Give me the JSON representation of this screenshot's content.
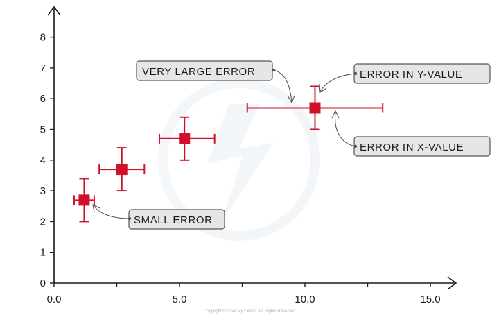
{
  "chart_data": {
    "type": "scatter",
    "title": "",
    "xlabel": "",
    "ylabel": "",
    "xlim": [
      0,
      16
    ],
    "ylim": [
      0,
      8.5
    ],
    "x_ticks": [
      "0.0",
      "5.0",
      "10.0",
      "15.0"
    ],
    "x_tick_values": [
      0,
      5,
      10,
      15
    ],
    "x_minor_ticks": [
      2.5,
      7.5,
      12.5
    ],
    "y_ticks": [
      "0",
      "1",
      "2",
      "3",
      "4",
      "5",
      "6",
      "7",
      "8"
    ],
    "y_tick_values": [
      0,
      1,
      2,
      3,
      4,
      5,
      6,
      7,
      8
    ],
    "grid": false,
    "marker_color": "#d0112b",
    "points": [
      {
        "x": 1.2,
        "y": 2.7,
        "x_err_low": 0.4,
        "x_err_high": 0.4,
        "y_err_low": 0.7,
        "y_err_high": 0.7
      },
      {
        "x": 2.7,
        "y": 3.7,
        "x_err_low": 0.9,
        "x_err_high": 0.9,
        "y_err_low": 0.7,
        "y_err_high": 0.7
      },
      {
        "x": 5.2,
        "y": 4.7,
        "x_err_low": 1.0,
        "x_err_high": 1.2,
        "y_err_low": 0.7,
        "y_err_high": 0.7
      },
      {
        "x": 10.4,
        "y": 5.7,
        "x_err_low": 2.7,
        "x_err_high": 2.7,
        "y_err_low": 0.7,
        "y_err_high": 0.7
      }
    ],
    "annotations": [
      {
        "text": "VERY LARGE ERROR"
      },
      {
        "text": "ERROR IN Y-VALUE"
      },
      {
        "text": "ERROR IN X-VALUE"
      },
      {
        "text": "SMALL ERROR"
      }
    ]
  },
  "footer": {
    "copyright": "Copyright © Save My Exams. All Rights Reserved"
  }
}
